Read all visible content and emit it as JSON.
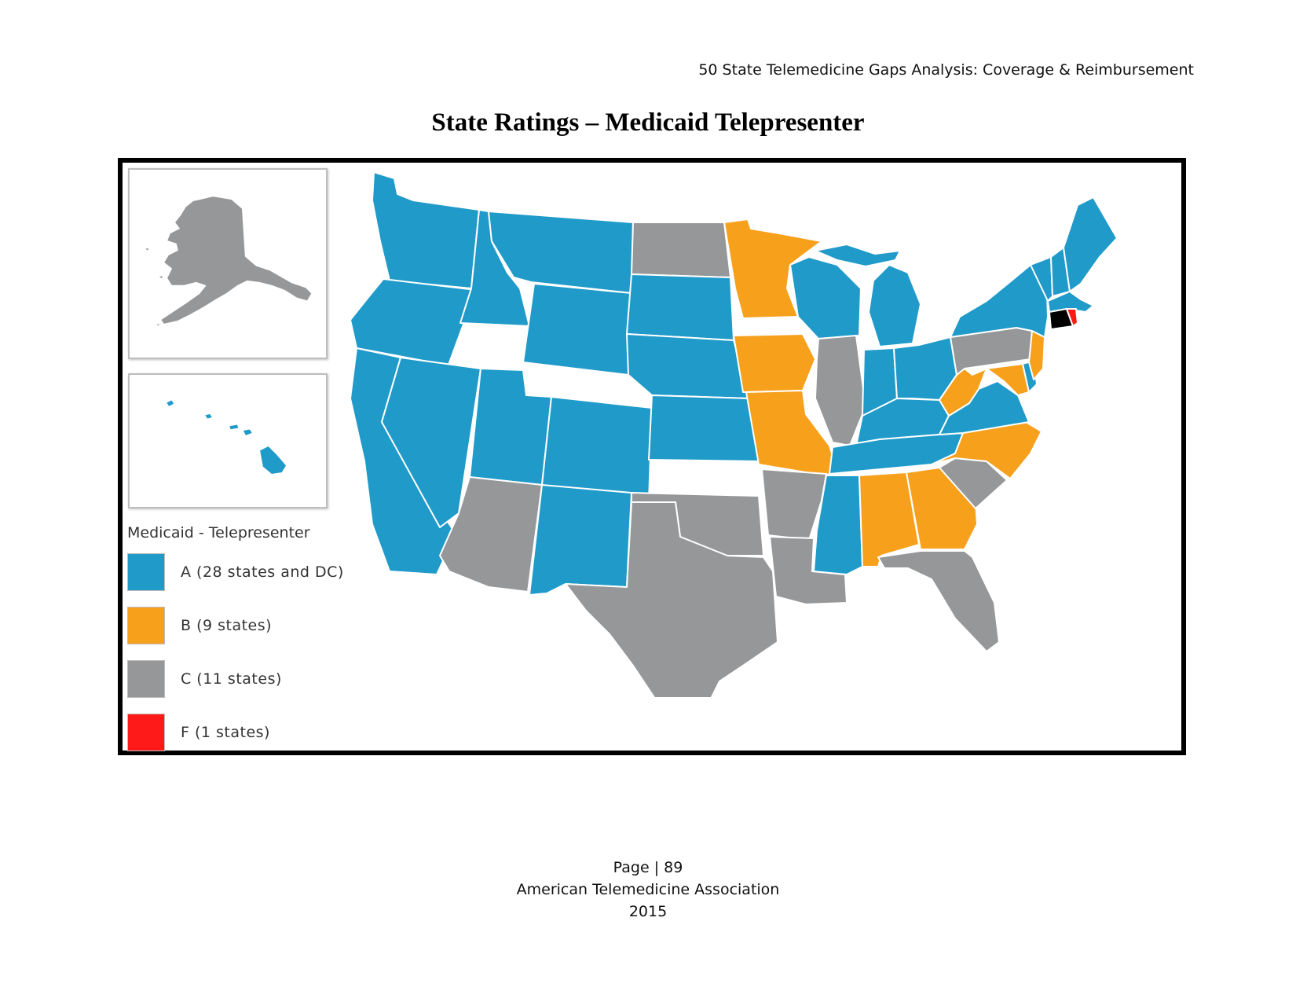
{
  "header": {
    "running_title": "50 State Telemedicine Gaps Analysis:  Coverage & Reimbursement"
  },
  "page_title": "State Ratings – Medicaid Telepresenter",
  "legend": {
    "title": "Medicaid - Telepresenter",
    "items": [
      {
        "grade": "A",
        "label": "A (28 states and DC)",
        "color": "#1f9ac9"
      },
      {
        "grade": "B",
        "label": "B (9 states)",
        "color": "#f7a01b"
      },
      {
        "grade": "C",
        "label": "C (11 states)",
        "color": "#959799"
      },
      {
        "grade": "F",
        "label": "F (1 states)",
        "color": "#ff1a1a"
      }
    ]
  },
  "colors": {
    "A": "#1f9ac9",
    "B": "#f7a01b",
    "C": "#959799",
    "F": "#ff1a1a",
    "CT": "#000000",
    "border": "#ffffff"
  },
  "state_grades": {
    "WA": "A",
    "OR": "A",
    "CA": "A",
    "ID": "A",
    "NV": "A",
    "MT": "A",
    "WY": "A",
    "UT": "A",
    "CO": "A",
    "NM": "A",
    "SD": "A",
    "NE": "A",
    "KS": "A",
    "WI": "A",
    "MI": "A",
    "IN": "A",
    "OH": "A",
    "KY": "A",
    "TN": "A",
    "MS": "A",
    "VA": "A",
    "NY": "A",
    "VT": "A",
    "NH": "A",
    "ME": "A",
    "MA": "A",
    "DE": "A",
    "HI": "A",
    "MN": "B",
    "IA": "B",
    "MO": "B",
    "WV": "B",
    "MD": "B",
    "NJ": "B",
    "NC": "B",
    "AL": "B",
    "GA": "B",
    "ND": "C",
    "AZ": "C",
    "TX": "C",
    "OK": "C",
    "AR": "C",
    "LA": "C",
    "IL": "C",
    "PA": "C",
    "SC": "C",
    "FL": "C",
    "AK": "C",
    "RI": "F",
    "CT": "CT"
  },
  "footer": {
    "page": "Page | 89",
    "organization": "American Telemedicine Association",
    "year": "2015"
  }
}
